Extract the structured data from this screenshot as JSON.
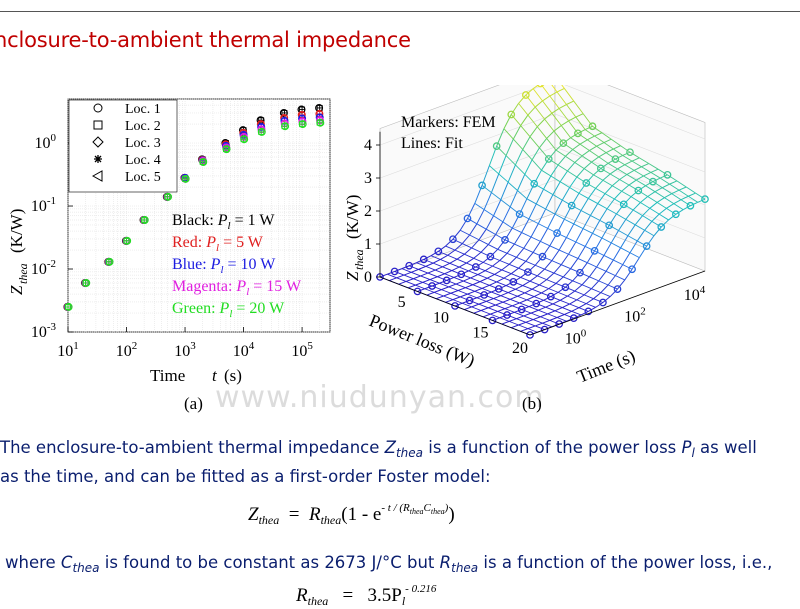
{
  "title": "nclosure-to-ambient thermal impedance",
  "watermark": "www.niudunyan.com",
  "chart_data": [
    {
      "type": "scatter",
      "panel_label": "(a)",
      "xscale": "log",
      "yscale": "log",
      "xlim": [
        10,
        300000
      ],
      "ylim": [
        0.001,
        5
      ],
      "xlabel_text": "Time",
      "xlabel_var": "t",
      "xlabel_unit": "(s)",
      "ylabel_var": "Z",
      "ylabel_sub": "thea",
      "ylabel_unit": "(K/W)",
      "x_ticks": [
        {
          "base": "10",
          "exp": "1",
          "value": 10
        },
        {
          "base": "10",
          "exp": "2",
          "value": 100
        },
        {
          "base": "10",
          "exp": "3",
          "value": 1000
        },
        {
          "base": "10",
          "exp": "4",
          "value": 10000
        },
        {
          "base": "10",
          "exp": "5",
          "value": 100000
        }
      ],
      "y_ticks": [
        {
          "base": "10",
          "exp": "-3",
          "value": 0.001
        },
        {
          "base": "10",
          "exp": "-2",
          "value": 0.01
        },
        {
          "base": "10",
          "exp": "-1",
          "value": 0.1
        },
        {
          "base": "10",
          "exp": "0",
          "value": 1
        }
      ],
      "legend_markers": [
        "Loc. 1",
        "Loc. 2",
        "Loc. 3",
        "Loc. 4",
        "Loc. 5"
      ],
      "legend_placement": "top-left",
      "color_legend": [
        {
          "color_name": "Black",
          "label": "P",
          "sub": "l",
          "value": "= 1 W",
          "color": "#000000"
        },
        {
          "color_name": "Red",
          "label": "P",
          "sub": "l",
          "value": "= 5 W",
          "color": "#e02020"
        },
        {
          "color_name": "Blue",
          "label": "P",
          "sub": "l",
          "value": "= 10 W",
          "color": "#1a1ae0"
        },
        {
          "color_name": "Magenta",
          "label": "P",
          "sub": "l",
          "value": "= 15 W",
          "color": "#e020e0"
        },
        {
          "color_name": "Green",
          "label": "P",
          "sub": "l",
          "value": "= 20 W",
          "color": "#22dd22"
        }
      ],
      "x": [
        10,
        20,
        50,
        100,
        200,
        500,
        1000,
        2000,
        5000,
        10000,
        20000,
        50000,
        100000,
        200000
      ],
      "series": [
        {
          "color": "#000000",
          "values": [
            0.0025,
            0.006,
            0.013,
            0.028,
            0.06,
            0.14,
            0.28,
            0.55,
            1.0,
            1.6,
            2.3,
            3.0,
            3.4,
            3.6
          ]
        },
        {
          "color": "#e02020",
          "values": [
            0.0025,
            0.006,
            0.013,
            0.028,
            0.06,
            0.14,
            0.28,
            0.54,
            0.95,
            1.45,
            2.0,
            2.5,
            2.8,
            2.9
          ]
        },
        {
          "color": "#1a1ae0",
          "values": [
            0.0025,
            0.006,
            0.013,
            0.028,
            0.06,
            0.14,
            0.28,
            0.53,
            0.9,
            1.35,
            1.8,
            2.25,
            2.45,
            2.55
          ]
        },
        {
          "color": "#e020e0",
          "values": [
            0.0025,
            0.006,
            0.013,
            0.028,
            0.06,
            0.14,
            0.27,
            0.52,
            0.85,
            1.25,
            1.65,
            2.05,
            2.2,
            2.3
          ]
        },
        {
          "color": "#22dd22",
          "values": [
            0.0025,
            0.006,
            0.013,
            0.028,
            0.06,
            0.14,
            0.27,
            0.5,
            0.8,
            1.15,
            1.5,
            1.85,
            2.0,
            2.1
          ]
        }
      ]
    },
    {
      "type": "surface",
      "panel_label": "(b)",
      "annotation_1": "Markers: FEM",
      "annotation_2": "Lines: Fit",
      "zlabel_var": "Z",
      "zlabel_sub": "thea",
      "zlabel_unit": "(K/W)",
      "z_ticks": [
        "0",
        "1",
        "2",
        "3",
        "4"
      ],
      "power_ticks": [
        "5",
        "10",
        "15",
        "20"
      ],
      "power_label": "Power loss (W)",
      "time_ticks": [
        {
          "base": "10",
          "exp": "0"
        },
        {
          "base": "10",
          "exp": "2"
        },
        {
          "base": "10",
          "exp": "4"
        }
      ],
      "time_label": "Time (s)",
      "power_values": [
        1,
        5,
        10,
        15,
        20
      ],
      "zmax_per_power": [
        4.2,
        3.1,
        2.75,
        2.5,
        2.2
      ]
    }
  ],
  "text": {
    "p1_line1_a": "The enclosure-to-ambient thermal impedance ",
    "p1_Z": "Z",
    "p1_Z_sub": "thea",
    "p1_line1_b": " is a function of the power loss ",
    "p1_P": "P",
    "p1_P_sub": "l",
    "p1_line1_c": " as well",
    "p1_line2": "as the time, and can be fitted as a first-order Foster model:",
    "eq1_lhs": "Z",
    "eq1_lhs_sub": "thea",
    "eq1_eq": "=",
    "eq1_R": "R",
    "eq1_R_sub": "thea",
    "eq1_open": "(1 -  e",
    "eq1_exp": "- t / (R",
    "eq1_exp_sub1": "thea",
    "eq1_exp_C": "C",
    "eq1_exp_sub2": "thea",
    "eq1_exp_close": ")",
    "eq1_close": ")",
    "p2_a": "where ",
    "p2_C": "C",
    "p2_C_sub": "thea",
    "p2_b": " is found to be constant as 2673 J/°C but ",
    "p2_R": "R",
    "p2_R_sub": "thea",
    "p2_c": " is a function of the power loss, i.e.,",
    "eq2_lhs": "R",
    "eq2_lhs_sub": "thea",
    "eq2_eq": "=",
    "eq2_rhs": "3.5P",
    "eq2_rhs_sub": "l",
    "eq2_exp": "- 0.216"
  }
}
